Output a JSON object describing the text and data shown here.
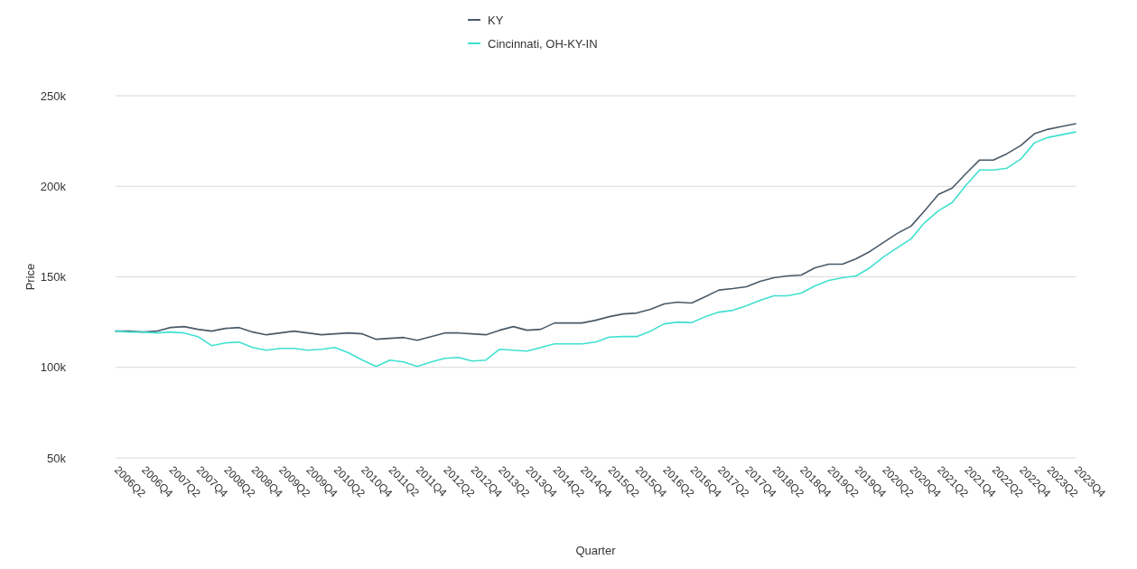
{
  "chart_data": {
    "type": "line",
    "xlabel": "Quarter",
    "ylabel": "Price",
    "categories": [
      "2006Q2",
      null,
      "2006Q4",
      null,
      "2007Q2",
      null,
      "2007Q4",
      null,
      "2008Q2",
      null,
      "2008Q4",
      null,
      "2009Q2",
      null,
      "2009Q4",
      null,
      "2010Q2",
      null,
      "2010Q4",
      null,
      "2011Q2",
      null,
      "2011Q4",
      null,
      "2012Q2",
      null,
      "2012Q4",
      null,
      "2013Q2",
      null,
      "2013Q4",
      null,
      "2014Q2",
      null,
      "2014Q4",
      null,
      "2015Q2",
      null,
      "2015Q4",
      null,
      "2016Q2",
      null,
      "2016Q4",
      null,
      "2017Q2",
      null,
      "2017Q4",
      null,
      "2018Q2",
      null,
      "2018Q4",
      null,
      "2019Q2",
      null,
      "2019Q4",
      null,
      "2020Q2",
      null,
      "2020Q4",
      null,
      "2021Q2",
      null,
      "2021Q4",
      null,
      "2022Q2",
      null,
      "2022Q4",
      null,
      "2023Q2",
      null,
      "2023Q4"
    ],
    "series": [
      {
        "name": "KY",
        "color": "#4a5a68",
        "values": [
          120000,
          120000,
          119500,
          120000,
          122000,
          122500,
          121000,
          120000,
          121500,
          122000,
          119500,
          118000,
          119000,
          120000,
          119000,
          118000,
          118500,
          119000,
          118500,
          115500,
          116000,
          116500,
          115000,
          117000,
          119000,
          119000,
          118500,
          118000,
          120500,
          122500,
          120500,
          121000,
          124500,
          124500,
          124500,
          126000,
          128000,
          129500,
          130000,
          132000,
          135000,
          136000,
          135500,
          139000,
          142700,
          143500,
          144500,
          147500,
          149500,
          150500,
          151000,
          155000,
          157000,
          157000,
          160000,
          164000,
          169000,
          174000,
          178000,
          186500,
          195500,
          199000,
          207000,
          214500,
          214500,
          218000,
          222500,
          229000,
          231500,
          233000,
          234500
        ]
      },
      {
        "name": "Cincinnati, OH-KY-IN",
        "color": "#40e0d0",
        "values": [
          120000,
          119500,
          119500,
          119000,
          119500,
          119000,
          117000,
          112000,
          113500,
          114000,
          111000,
          109500,
          110500,
          110500,
          109500,
          110000,
          111000,
          108000,
          104000,
          100500,
          104000,
          103000,
          100500,
          103000,
          105000,
          105500,
          103500,
          104000,
          110000,
          109500,
          109000,
          111000,
          113000,
          113000,
          113000,
          114000,
          116700,
          117000,
          117000,
          120000,
          124000,
          125000,
          124700,
          128000,
          130500,
          131500,
          134000,
          137000,
          139500,
          139500,
          141000,
          145000,
          148000,
          149500,
          150500,
          155000,
          161000,
          166000,
          171000,
          180000,
          186500,
          191000,
          200500,
          209000,
          209000,
          210000,
          215000,
          224000,
          227000,
          228500,
          230000
        ]
      }
    ],
    "ylim": [
      50000,
      250000
    ],
    "yticks": [
      {
        "value": 50000,
        "label": "50k"
      },
      {
        "value": 100000,
        "label": "100k"
      },
      {
        "value": 150000,
        "label": "150k"
      },
      {
        "value": 200000,
        "label": "200k"
      },
      {
        "value": 250000,
        "label": "250k"
      }
    ],
    "grid": "y",
    "legend": "top",
    "line_style": "solid"
  }
}
